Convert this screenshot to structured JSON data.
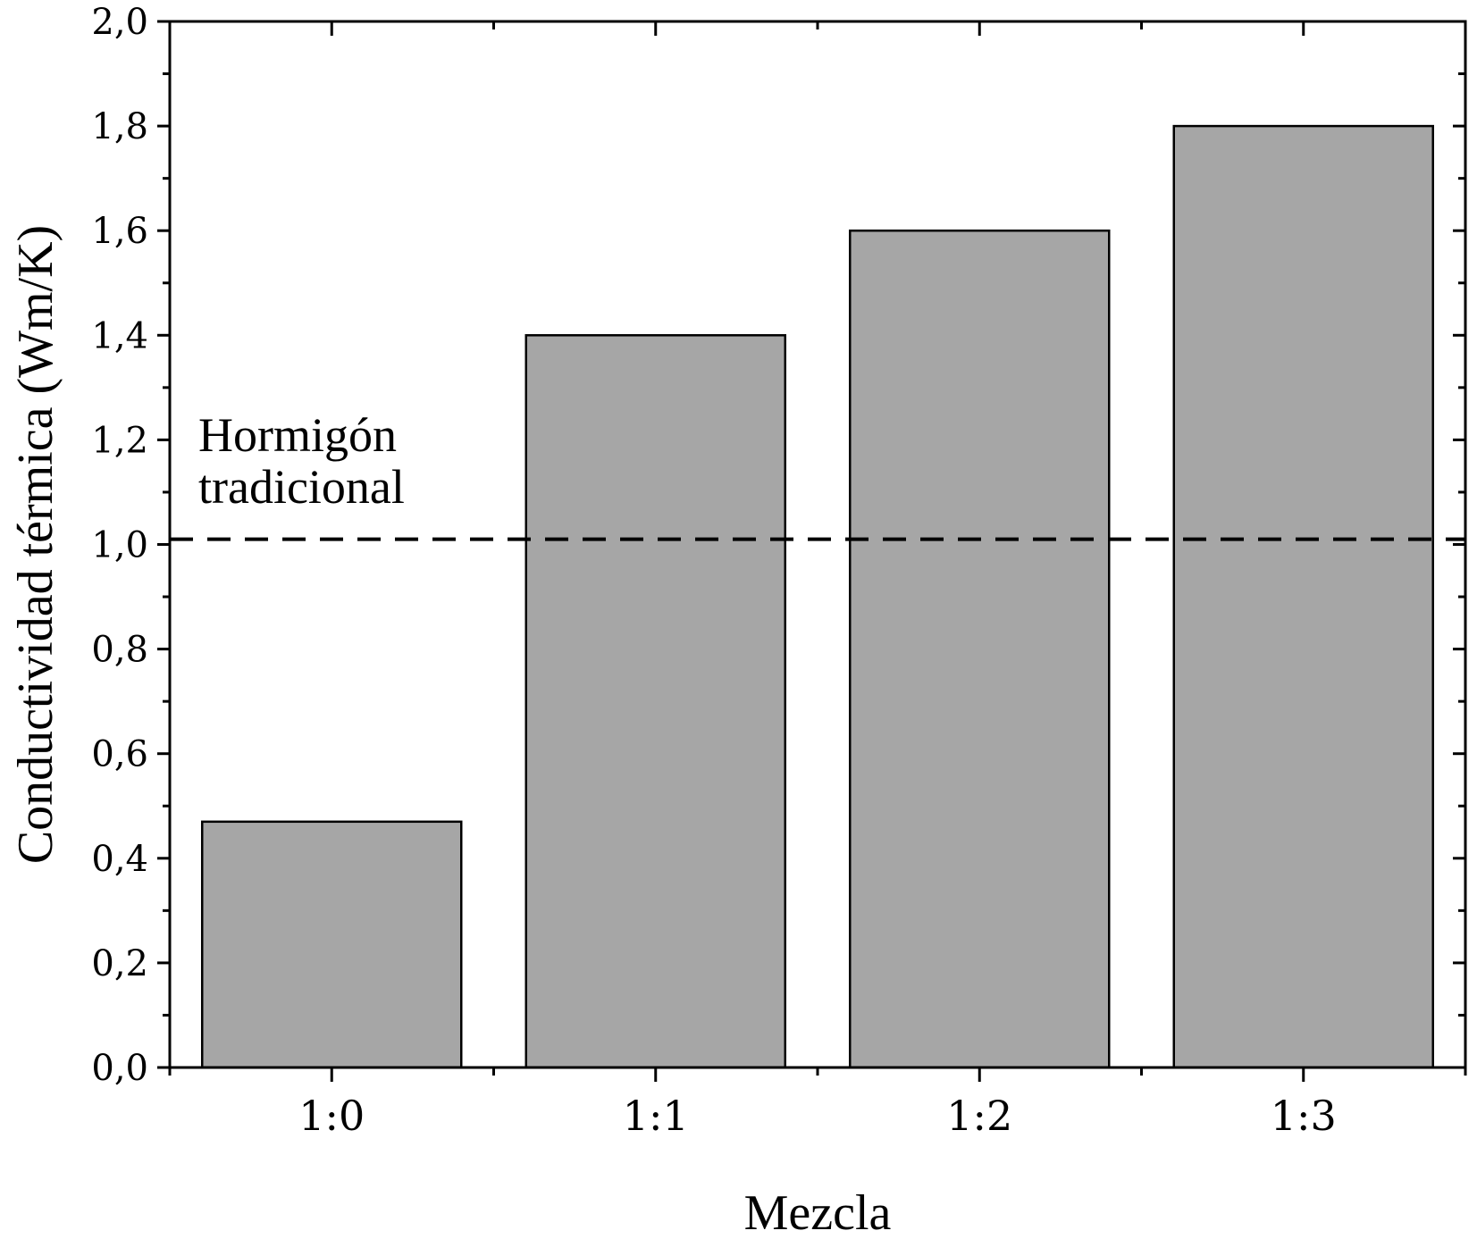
{
  "chart_data": {
    "type": "bar",
    "categories": [
      "1:0",
      "1:1",
      "1:2",
      "1:3"
    ],
    "values": [
      0.47,
      1.4,
      1.6,
      1.8
    ],
    "title": "",
    "xlabel": "Mezcla",
    "ylabel": "Conductividad térmica (Wm/K)",
    "ylim": [
      0,
      2.0
    ],
    "yticks": [
      "0,0",
      "0,2",
      "0,4",
      "0,6",
      "0,8",
      "1,0",
      "1,2",
      "1,4",
      "1,6",
      "1,8",
      "2,0"
    ],
    "bar_color": "#a6a6a6",
    "reference_line": {
      "value": 1.01,
      "style": "dashed",
      "label_lines": [
        "Hormigón",
        "tradicional"
      ]
    },
    "grid": false,
    "legend": "none"
  }
}
